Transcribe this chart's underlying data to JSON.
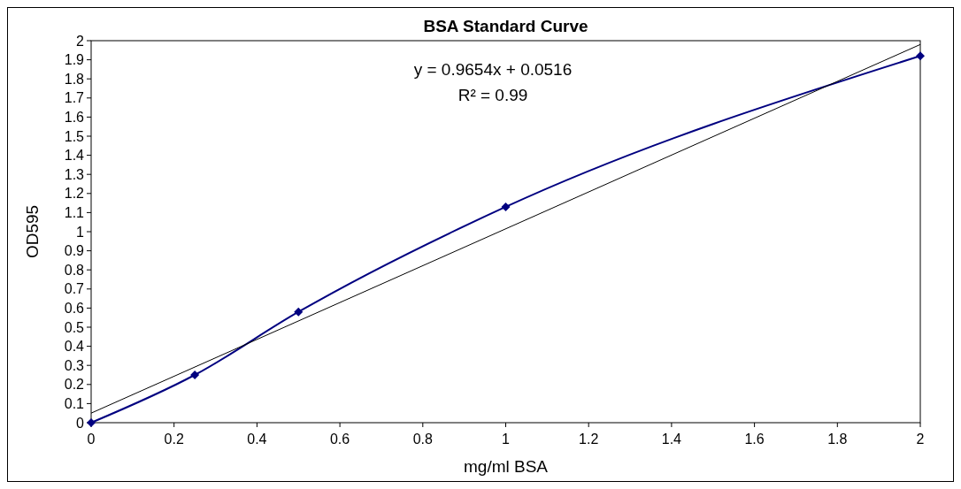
{
  "chart_data": {
    "type": "line",
    "title": "BSA Standard Curve",
    "xlabel": "mg/ml BSA",
    "ylabel": "OD595",
    "x": [
      0,
      0.25,
      0.5,
      1,
      2
    ],
    "series": [
      {
        "color": "#000080",
        "values": [
          0,
          0.25,
          0.58,
          1.13,
          1.92
        ],
        "marker": "diamond"
      },
      {
        "type": "line",
        "color": "#000000",
        "x": [
          0,
          2
        ],
        "values": [
          0.05,
          1.98
        ],
        "marker": "none"
      }
    ],
    "xlim": [
      0,
      2
    ],
    "xticks": [
      0,
      0.2,
      0.4,
      0.6,
      0.8,
      1,
      1.2,
      1.4,
      1.6,
      1.8,
      2
    ],
    "ylim": [
      0,
      2
    ],
    "yticks": [
      0,
      0.1,
      0.2,
      0.3,
      0.4,
      0.5,
      0.6,
      0.7,
      0.8,
      0.9,
      1,
      1.1,
      1.2,
      1.3,
      1.4,
      1.5,
      1.6,
      1.7,
      1.8,
      1.9,
      2
    ],
    "annotations": [
      "y = 0.9654x + 0.0516",
      "R² = 0.99"
    ],
    "grid": false
  }
}
